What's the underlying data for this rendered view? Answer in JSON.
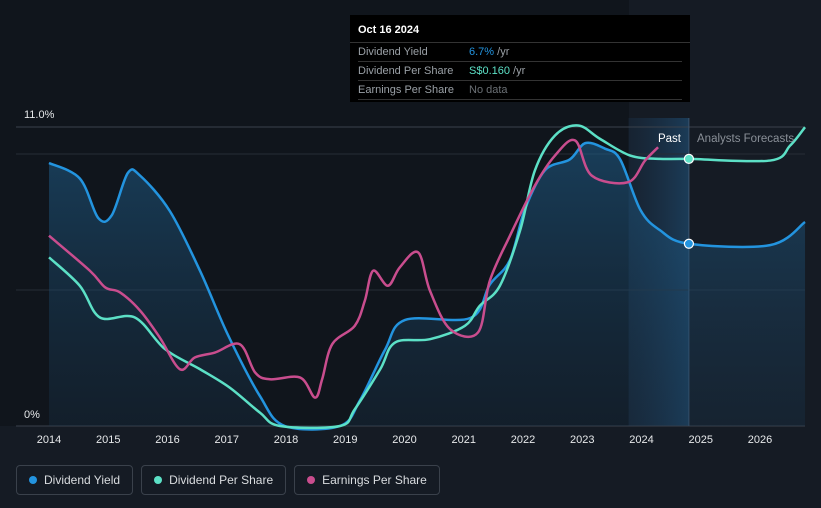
{
  "tooltip": {
    "date": "Oct 16 2024",
    "rows": [
      {
        "label": "Dividend Yield",
        "value": "6.7%",
        "unit": " /yr",
        "color": "#2394df"
      },
      {
        "label": "Dividend Per Share",
        "value": "S$0.160",
        "unit": " /yr",
        "color": "#5ce0c6"
      },
      {
        "label": "Earnings Per Share",
        "value": "No data",
        "unit": "",
        "color": "#6b7075"
      }
    ]
  },
  "chart_data": {
    "type": "line",
    "ylabel_top": "11.0%",
    "ylabel_bottom": "0%",
    "ylim": [
      0,
      11
    ],
    "x_ticks": [
      "2014",
      "2015",
      "2016",
      "2017",
      "2018",
      "2019",
      "2020",
      "2021",
      "2022",
      "2023",
      "2024",
      "2025",
      "2026"
    ],
    "past_label": "Past",
    "forecast_label": "Analysts Forecasts",
    "forecast_start": 2024.8,
    "past_highlight_start": 2023.78,
    "series": [
      {
        "name": "Dividend Yield",
        "unit": "%",
        "color": "#2394df",
        "points": [
          [
            2014.0,
            9.67
          ],
          [
            2014.52,
            9.1
          ],
          [
            2014.83,
            7.65
          ],
          [
            2015.06,
            7.75
          ],
          [
            2015.33,
            9.3
          ],
          [
            2015.54,
            9.2
          ],
          [
            2016.04,
            7.9
          ],
          [
            2016.55,
            5.7
          ],
          [
            2017.02,
            3.35
          ],
          [
            2017.56,
            1.1
          ],
          [
            2017.98,
            0
          ],
          [
            2018.91,
            0
          ],
          [
            2019.25,
            0.95
          ],
          [
            2019.67,
            2.8
          ],
          [
            2020.01,
            3.9
          ],
          [
            2021.11,
            3.97
          ],
          [
            2021.44,
            5.2
          ],
          [
            2021.78,
            6.1
          ],
          [
            2022.03,
            7.95
          ],
          [
            2022.37,
            9.4
          ],
          [
            2022.79,
            9.8
          ],
          [
            2023.05,
            10.4
          ],
          [
            2023.38,
            10.2
          ],
          [
            2023.64,
            9.8
          ],
          [
            2023.98,
            7.95
          ],
          [
            2024.31,
            7.2
          ],
          [
            2024.8,
            6.7
          ],
          [
            2026.17,
            6.65
          ],
          [
            2026.76,
            7.5
          ]
        ]
      },
      {
        "name": "Dividend Per Share",
        "unit": "S$",
        "color": "#5ce0c6",
        "points": [
          [
            2014.0,
            0.101
          ],
          [
            2014.52,
            0.084
          ],
          [
            2014.86,
            0.065
          ],
          [
            2015.45,
            0.065
          ],
          [
            2015.96,
            0.046
          ],
          [
            2016.55,
            0.034
          ],
          [
            2017.05,
            0.023
          ],
          [
            2017.56,
            0.008
          ],
          [
            2017.9,
            0
          ],
          [
            2018.91,
            0
          ],
          [
            2019.16,
            0.01
          ],
          [
            2019.59,
            0.034
          ],
          [
            2019.84,
            0.05
          ],
          [
            2020.43,
            0.052
          ],
          [
            2021.02,
            0.06
          ],
          [
            2021.27,
            0.072
          ],
          [
            2021.61,
            0.084
          ],
          [
            2021.95,
            0.117
          ],
          [
            2022.2,
            0.153
          ],
          [
            2022.54,
            0.174
          ],
          [
            2022.93,
            0.18
          ],
          [
            2023.3,
            0.172
          ],
          [
            2023.81,
            0.162
          ],
          [
            2024.31,
            0.16
          ],
          [
            2024.8,
            0.16
          ],
          [
            2026.17,
            0.159
          ],
          [
            2026.51,
            0.168
          ],
          [
            2026.76,
            0.179
          ]
        ]
      },
      {
        "name": "Earnings Per Share",
        "unit": "S$",
        "color": "#c94d8e",
        "points": [
          [
            2014.0,
            0.114
          ],
          [
            2014.69,
            0.093
          ],
          [
            2014.95,
            0.083
          ],
          [
            2015.2,
            0.08
          ],
          [
            2015.54,
            0.069
          ],
          [
            2015.87,
            0.053
          ],
          [
            2016.21,
            0.034
          ],
          [
            2016.46,
            0.041
          ],
          [
            2016.8,
            0.044
          ],
          [
            2017.22,
            0.049
          ],
          [
            2017.48,
            0.032
          ],
          [
            2017.73,
            0.028
          ],
          [
            2018.24,
            0.029
          ],
          [
            2018.49,
            0.017
          ],
          [
            2018.61,
            0.028
          ],
          [
            2018.78,
            0.049
          ],
          [
            2019.16,
            0.06
          ],
          [
            2019.33,
            0.075
          ],
          [
            2019.47,
            0.093
          ],
          [
            2019.72,
            0.084
          ],
          [
            2019.92,
            0.095
          ],
          [
            2020.23,
            0.104
          ],
          [
            2020.43,
            0.081
          ],
          [
            2020.77,
            0.058
          ],
          [
            2021.24,
            0.056
          ],
          [
            2021.44,
            0.087
          ],
          [
            2021.78,
            0.114
          ],
          [
            2022.2,
            0.144
          ],
          [
            2022.54,
            0.162
          ],
          [
            2022.88,
            0.171
          ],
          [
            2023.16,
            0.15
          ],
          [
            2023.77,
            0.146
          ],
          [
            2024.06,
            0.159
          ],
          [
            2024.28,
            0.167
          ]
        ]
      }
    ]
  },
  "legend": [
    {
      "label": "Dividend Yield",
      "color": "#2394df"
    },
    {
      "label": "Dividend Per Share",
      "color": "#5ce0c6"
    },
    {
      "label": "Earnings Per Share",
      "color": "#c94d8e"
    }
  ]
}
